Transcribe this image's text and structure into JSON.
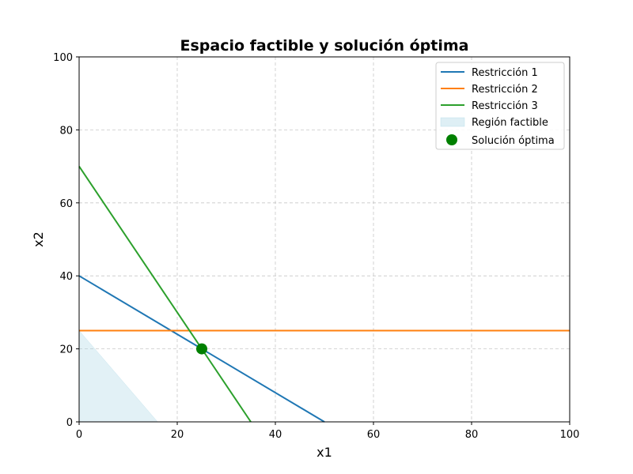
{
  "chart_data": {
    "type": "line",
    "title": "Espacio factible y solución óptima",
    "xlabel": "x1",
    "ylabel": "x2",
    "xlim": [
      0,
      100
    ],
    "ylim": [
      0,
      100
    ],
    "xticks": [
      0,
      20,
      40,
      60,
      80,
      100
    ],
    "yticks": [
      0,
      20,
      40,
      60,
      80,
      100
    ],
    "grid": true,
    "legend_position": "top-right",
    "series": [
      {
        "name": "Restricción 1",
        "color": "#1f77b4",
        "points": [
          [
            0,
            40
          ],
          [
            50,
            0
          ]
        ]
      },
      {
        "name": "Restricción 2",
        "color": "#ff7f0e",
        "points": [
          [
            0,
            25
          ],
          [
            100,
            25
          ]
        ]
      },
      {
        "name": "Restricción 3",
        "color": "#2ca02c",
        "points": [
          [
            0,
            70
          ],
          [
            35,
            0
          ]
        ]
      }
    ],
    "feasible_region": {
      "name": "Región factible",
      "color": "#add8e6",
      "points": [
        [
          0,
          0
        ],
        [
          0,
          25
        ],
        [
          16,
          0
        ]
      ]
    },
    "optimal_point": {
      "name": "Solución óptima",
      "color": "#008000",
      "x": 25,
      "y": 20
    }
  }
}
